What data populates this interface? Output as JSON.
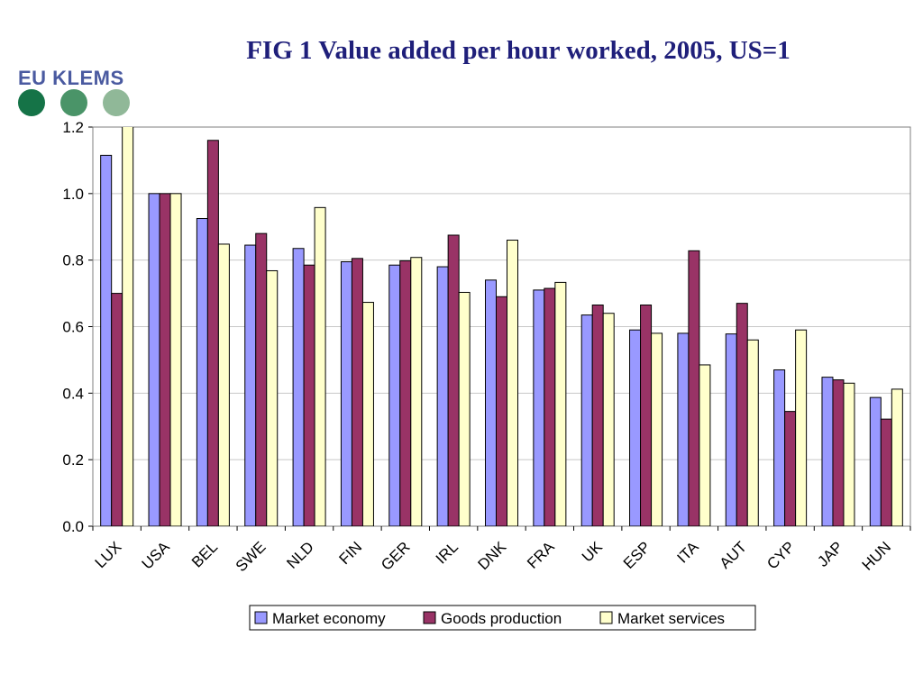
{
  "title": "FIG 1 Value added per hour worked, 2005, US=1",
  "logo": {
    "text": "EU KLEMS"
  },
  "chart_data": {
    "type": "bar",
    "title": "FIG 1 Value added per hour worked, 2005, US=1",
    "xlabel": "",
    "ylabel": "",
    "ylim": [
      0,
      1.2
    ],
    "yticks": [
      "0.0",
      "0.2",
      "0.4",
      "0.6",
      "0.8",
      "1.0",
      "1.2"
    ],
    "grid": true,
    "legend_position": "bottom",
    "categories": [
      "LUX",
      "USA",
      "BEL",
      "SWE",
      "NLD",
      "FIN",
      "GER",
      "IRL",
      "DNK",
      "FRA",
      "UK",
      "ESP",
      "ITA",
      "AUT",
      "CYP",
      "JAP",
      "HUN"
    ],
    "series": [
      {
        "name": "Market economy",
        "color": "#9999ff",
        "values": [
          1.115,
          1.0,
          0.925,
          0.845,
          0.835,
          0.795,
          0.785,
          0.78,
          0.74,
          0.71,
          0.635,
          0.59,
          0.58,
          0.578,
          0.47,
          0.448,
          0.387
        ]
      },
      {
        "name": "Goods production",
        "color": "#993366",
        "values": [
          0.7,
          1.0,
          1.16,
          0.88,
          0.785,
          0.805,
          0.798,
          0.875,
          0.69,
          0.715,
          0.665,
          0.665,
          0.828,
          0.67,
          0.345,
          0.44,
          0.322
        ]
      },
      {
        "name": "Market services",
        "color": "#ffffcc",
        "values": [
          1.22,
          1.0,
          0.848,
          0.768,
          0.958,
          0.673,
          0.808,
          0.703,
          0.86,
          0.733,
          0.64,
          0.58,
          0.485,
          0.56,
          0.59,
          0.43,
          0.412
        ]
      }
    ]
  }
}
